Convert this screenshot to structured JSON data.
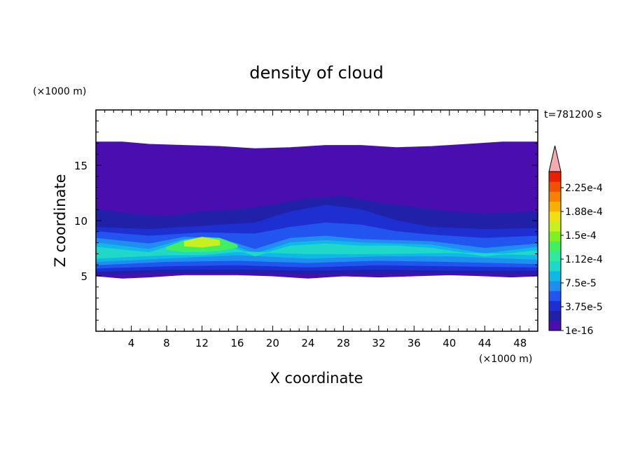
{
  "chart_data": {
    "type": "heatmap",
    "title": "density of cloud",
    "xlabel": "X coordinate",
    "ylabel": "Z coordinate",
    "x_unit": "(×1000 m)",
    "y_unit": "(×1000 m)",
    "time_label": "t=781200 s",
    "xlim": [
      0,
      50
    ],
    "ylim": [
      0,
      20
    ],
    "x_ticks": [
      4,
      8,
      12,
      16,
      20,
      24,
      28,
      32,
      36,
      40,
      44,
      48
    ],
    "y_ticks": [
      5,
      10,
      15
    ],
    "colorbar": {
      "labels": [
        "1e-16",
        "3.75e-5",
        "7.5e-5",
        "1.12e-4",
        "1.5e-4",
        "1.88e-4",
        "2.25e-4"
      ],
      "colors": [
        "#4a0eb0",
        "#2020a8",
        "#1d2fd0",
        "#2255f0",
        "#1f8ef0",
        "#10b8e8",
        "#20d8c8",
        "#30e8a0",
        "#40f060",
        "#80f020",
        "#c8f020",
        "#f0e010",
        "#f8b000",
        "#f88000",
        "#f05000",
        "#e82000",
        "#f8a8b0"
      ]
    },
    "band_profiles": [
      {
        "level": 0,
        "color": "#4a0eb0",
        "bottom": [
          [
            0,
            5.0
          ],
          [
            3,
            4.8
          ],
          [
            6,
            4.9
          ],
          [
            10,
            5.1
          ],
          [
            16,
            5.1
          ],
          [
            20,
            5.0
          ],
          [
            24,
            4.8
          ],
          [
            28,
            5.0
          ],
          [
            32,
            4.9
          ],
          [
            36,
            5.0
          ],
          [
            40,
            5.1
          ],
          [
            44,
            5.0
          ],
          [
            47,
            4.9
          ],
          [
            50,
            5.0
          ]
        ],
        "top": [
          [
            0,
            17.1
          ],
          [
            3,
            17.1
          ],
          [
            6,
            16.9
          ],
          [
            10,
            16.8
          ],
          [
            14,
            16.7
          ],
          [
            18,
            16.5
          ],
          [
            22,
            16.6
          ],
          [
            26,
            16.8
          ],
          [
            30,
            16.8
          ],
          [
            34,
            16.6
          ],
          [
            38,
            16.7
          ],
          [
            42,
            16.9
          ],
          [
            46,
            17.1
          ],
          [
            50,
            17.1
          ]
        ]
      },
      {
        "level": 1,
        "color": "#2020a8",
        "bottom": [
          [
            0,
            5.2
          ],
          [
            8,
            5.3
          ],
          [
            16,
            5.3
          ],
          [
            24,
            5.2
          ],
          [
            32,
            5.2
          ],
          [
            40,
            5.3
          ],
          [
            50,
            5.2
          ]
        ],
        "top": [
          [
            0,
            11.0
          ],
          [
            4,
            10.6
          ],
          [
            8,
            10.4
          ],
          [
            12,
            10.8
          ],
          [
            16,
            11.0
          ],
          [
            20,
            11.4
          ],
          [
            24,
            12.0
          ],
          [
            28,
            12.2
          ],
          [
            32,
            11.6
          ],
          [
            36,
            11.2
          ],
          [
            40,
            10.8
          ],
          [
            44,
            10.6
          ],
          [
            50,
            10.8
          ]
        ]
      },
      {
        "level": 2,
        "color": "#1d2fd0",
        "bottom": [
          [
            0,
            5.4
          ],
          [
            8,
            5.6
          ],
          [
            16,
            5.6
          ],
          [
            24,
            5.5
          ],
          [
            32,
            5.6
          ],
          [
            40,
            5.5
          ],
          [
            50,
            5.5
          ]
        ],
        "top": [
          [
            0,
            9.4
          ],
          [
            6,
            9.2
          ],
          [
            12,
            9.5
          ],
          [
            18,
            9.8
          ],
          [
            22,
            10.8
          ],
          [
            26,
            11.4
          ],
          [
            30,
            11.0
          ],
          [
            34,
            10.0
          ],
          [
            38,
            9.4
          ],
          [
            44,
            9.2
          ],
          [
            50,
            9.3
          ]
        ]
      },
      {
        "level": 3,
        "color": "#2255f0",
        "bottom": [
          [
            0,
            5.7
          ],
          [
            8,
            5.9
          ],
          [
            16,
            6.0
          ],
          [
            24,
            5.8
          ],
          [
            32,
            6.0
          ],
          [
            40,
            5.9
          ],
          [
            50,
            5.8
          ]
        ],
        "top": [
          [
            0,
            9.0
          ],
          [
            6,
            8.6
          ],
          [
            12,
            8.9
          ],
          [
            18,
            8.8
          ],
          [
            22,
            9.4
          ],
          [
            26,
            9.8
          ],
          [
            30,
            9.6
          ],
          [
            34,
            9.0
          ],
          [
            38,
            8.7
          ],
          [
            44,
            8.4
          ],
          [
            50,
            8.6
          ]
        ]
      },
      {
        "level": 4,
        "color": "#1f8ef0",
        "bottom": [
          [
            0,
            6.0
          ],
          [
            8,
            6.3
          ],
          [
            16,
            6.4
          ],
          [
            24,
            6.2
          ],
          [
            32,
            6.4
          ],
          [
            40,
            6.3
          ],
          [
            50,
            6.1
          ]
        ],
        "top": [
          [
            0,
            8.4
          ],
          [
            6,
            7.9
          ],
          [
            10,
            8.5
          ],
          [
            14,
            8.4
          ],
          [
            18,
            7.4
          ],
          [
            22,
            8.4
          ],
          [
            26,
            8.6
          ],
          [
            30,
            8.3
          ],
          [
            34,
            8.2
          ],
          [
            38,
            8.1
          ],
          [
            44,
            7.5
          ],
          [
            50,
            7.9
          ]
        ]
      },
      {
        "level": 5,
        "color": "#10b8e8",
        "bottom": [
          [
            0,
            6.3
          ],
          [
            8,
            6.6
          ],
          [
            16,
            6.9
          ],
          [
            24,
            6.6
          ],
          [
            32,
            6.8
          ],
          [
            40,
            6.8
          ],
          [
            50,
            6.5
          ]
        ],
        "top": [
          [
            0,
            8.0
          ],
          [
            6,
            7.4
          ],
          [
            10,
            8.3
          ],
          [
            14,
            8.2
          ],
          [
            18,
            7.0
          ],
          [
            22,
            8.0
          ],
          [
            26,
            8.2
          ],
          [
            30,
            8.0
          ],
          [
            34,
            7.9
          ],
          [
            38,
            7.8
          ],
          [
            44,
            7.0
          ],
          [
            50,
            7.6
          ]
        ]
      },
      {
        "level": 6,
        "color": "#20d8c8",
        "bottom": [
          [
            0,
            6.6
          ],
          [
            8,
            6.9
          ],
          [
            12,
            6.9
          ],
          [
            16,
            7.2
          ],
          [
            24,
            7.0
          ],
          [
            32,
            7.0
          ],
          [
            40,
            7.1
          ],
          [
            50,
            6.9
          ]
        ],
        "top": [
          [
            0,
            7.6
          ],
          [
            6,
            7.1
          ],
          [
            10,
            8.1
          ],
          [
            14,
            8.0
          ],
          [
            18,
            6.8
          ],
          [
            22,
            7.7
          ],
          [
            26,
            7.9
          ],
          [
            30,
            7.7
          ],
          [
            34,
            7.7
          ],
          [
            38,
            7.5
          ],
          [
            44,
            6.8
          ],
          [
            50,
            7.3
          ]
        ]
      },
      {
        "level": 8,
        "color": "#40f060",
        "bottom": [
          [
            8,
            7.4
          ],
          [
            10,
            7.2
          ],
          [
            12,
            7.2
          ],
          [
            14,
            7.3
          ],
          [
            16,
            7.6
          ]
        ],
        "top": [
          [
            8,
            7.6
          ],
          [
            10,
            8.2
          ],
          [
            12,
            8.5
          ],
          [
            14,
            8.4
          ],
          [
            16,
            7.8
          ]
        ]
      },
      {
        "level": 10,
        "color": "#c8f020",
        "bottom": [
          [
            10,
            7.7
          ],
          [
            12,
            7.6
          ],
          [
            14,
            7.8
          ]
        ],
        "top": [
          [
            10,
            8.1
          ],
          [
            12,
            8.5
          ],
          [
            14,
            8.2
          ]
        ]
      }
    ]
  }
}
